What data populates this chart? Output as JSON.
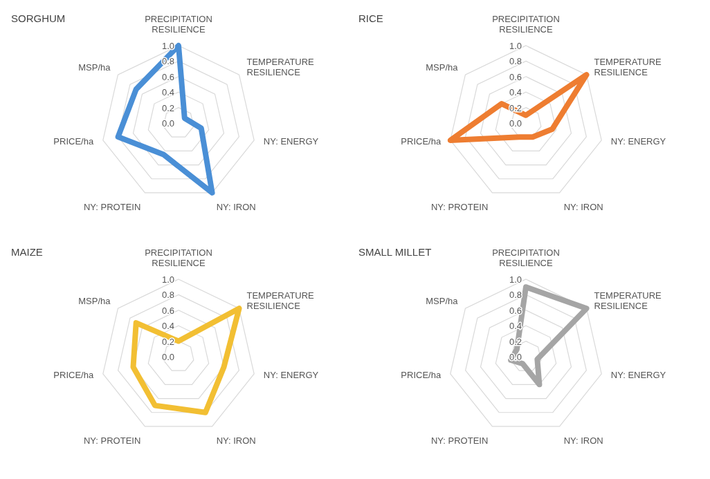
{
  "chart_data": [
    {
      "type": "radar",
      "title": "SORGHUM",
      "categories": [
        "PRECIPITATION RESILIENCE",
        "TEMPERATURE RESILIENCE",
        "NY: ENERGY",
        "NY: IRON",
        "NY: PROTEIN",
        "PRICE/ha",
        "MSP/ha"
      ],
      "ylim": [
        0,
        1
      ],
      "yticks": [
        {
          "value": 0,
          "label": "0.0"
        },
        {
          "value": 0.2,
          "label": "0.2"
        },
        {
          "value": 0.4,
          "label": "0.4"
        },
        {
          "value": 0.6,
          "label": "0.6"
        },
        {
          "value": 0.8,
          "label": "0.8"
        },
        {
          "value": 1,
          "label": "1.0"
        }
      ],
      "grid": true,
      "series": [
        {
          "color": "#4a8fd6",
          "values": [
            1.0,
            0.1,
            0.3,
            1.0,
            0.45,
            0.8,
            0.7
          ]
        }
      ]
    },
    {
      "type": "radar",
      "title": "RICE",
      "categories": [
        "PRECIPITATION RESILIENCE",
        "TEMPERATURE RESILIENCE",
        "NY: ENERGY",
        "NY: IRON",
        "NY: PROTEIN",
        "PRICE/ha",
        "MSP/ha"
      ],
      "ylim": [
        0,
        1
      ],
      "yticks": [
        {
          "value": 0,
          "label": "0.0"
        },
        {
          "value": 0.2,
          "label": "0.2"
        },
        {
          "value": 0.4,
          "label": "0.4"
        },
        {
          "value": 0.6,
          "label": "0.6"
        },
        {
          "value": 0.8,
          "label": "0.8"
        },
        {
          "value": 1,
          "label": "1.0"
        }
      ],
      "grid": true,
      "series": [
        {
          "color": "#ee7d31",
          "values": [
            0.1,
            1.0,
            0.35,
            0.2,
            0.2,
            1.0,
            0.4
          ]
        }
      ]
    },
    {
      "type": "radar",
      "title": "MAIZE",
      "categories": [
        "PRECIPITATION RESILIENCE",
        "TEMPERATURE RESILIENCE",
        "NY: ENERGY",
        "NY: IRON",
        "NY: PROTEIN",
        "PRICE/ha",
        "MSP/ha"
      ],
      "ylim": [
        0,
        1
      ],
      "yticks": [
        {
          "value": 0,
          "label": "0.0"
        },
        {
          "value": 0.2,
          "label": "0.2"
        },
        {
          "value": 0.4,
          "label": "0.4"
        },
        {
          "value": 0.6,
          "label": "0.6"
        },
        {
          "value": 0.8,
          "label": "0.8"
        },
        {
          "value": 1,
          "label": "1.0"
        }
      ],
      "grid": true,
      "series": [
        {
          "color": "#f2bf33",
          "values": [
            0.2,
            1.0,
            0.6,
            0.8,
            0.7,
            0.6,
            0.7
          ]
        }
      ]
    },
    {
      "type": "radar",
      "title": "SMALL MILLET",
      "categories": [
        "PRECIPITATION RESILIENCE",
        "TEMPERATURE RESILIENCE",
        "NY: ENERGY",
        "NY: IRON",
        "NY: PROTEIN",
        "PRICE/ha",
        "MSP/ha"
      ],
      "ylim": [
        0,
        1
      ],
      "yticks": [
        {
          "value": 0,
          "label": "0.0"
        },
        {
          "value": 0.2,
          "label": "0.2"
        },
        {
          "value": 0.4,
          "label": "0.4"
        },
        {
          "value": 0.6,
          "label": "0.6"
        },
        {
          "value": 0.8,
          "label": "0.8"
        },
        {
          "value": 1,
          "label": "1.0"
        }
      ],
      "grid": true,
      "series": [
        {
          "color": "#a5a5a5",
          "values": [
            0.9,
            1.0,
            0.15,
            0.4,
            0.1,
            0.2,
            0.15
          ]
        }
      ]
    }
  ]
}
